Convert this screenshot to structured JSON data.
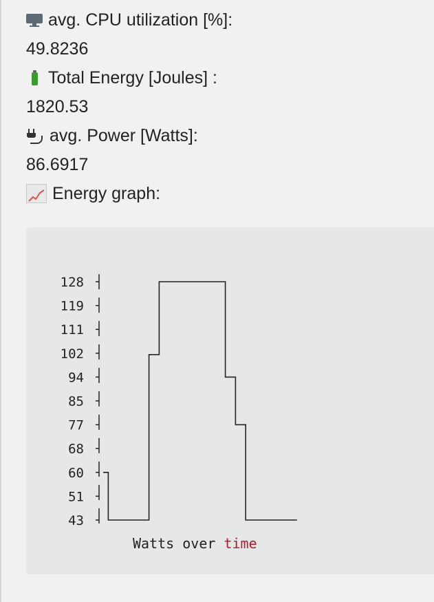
{
  "metrics": {
    "cpu": {
      "label": "avg. CPU utilization [%]:",
      "value": "49.8236",
      "icon": "monitor-icon"
    },
    "energy": {
      "label": "Total Energy [Joules] :",
      "value": "1820.53",
      "icon": "battery-icon"
    },
    "power": {
      "label": "avg. Power [Watts]:",
      "value": "86.6917",
      "icon": "plug-icon"
    },
    "graph": {
      "label": "Energy graph:",
      "icon": "chart-increasing-icon"
    }
  },
  "chart_data": {
    "type": "line",
    "style": "ascii-step",
    "title": "",
    "xlabel": "",
    "ylabel": "",
    "caption_parts": [
      "Watts over ",
      "time"
    ],
    "caption_colors": [
      "#222222",
      "#b31d28"
    ],
    "y_ticks": [
      "128",
      "119",
      "111",
      "102",
      "94",
      "85",
      "77",
      "68",
      "60",
      "51",
      "43"
    ],
    "ylim": [
      43,
      128
    ],
    "x": [
      0,
      1,
      2,
      3,
      4,
      5,
      6,
      7,
      8,
      9,
      10,
      11,
      12,
      13,
      14,
      15,
      16,
      17,
      18,
      19,
      20,
      21,
      22,
      23,
      24,
      25,
      26,
      27,
      28,
      29,
      30,
      31,
      32,
      33,
      34,
      35,
      36
    ],
    "series": [
      {
        "values": [
          60,
          43,
          43,
          43,
          43,
          43,
          43,
          43,
          43,
          102,
          102,
          128,
          128,
          128,
          128,
          128,
          128,
          128,
          128,
          128,
          128,
          128,
          128,
          128,
          94,
          94,
          77,
          77,
          43,
          43,
          43,
          43,
          43,
          43,
          43,
          43,
          43
        ]
      }
    ]
  }
}
